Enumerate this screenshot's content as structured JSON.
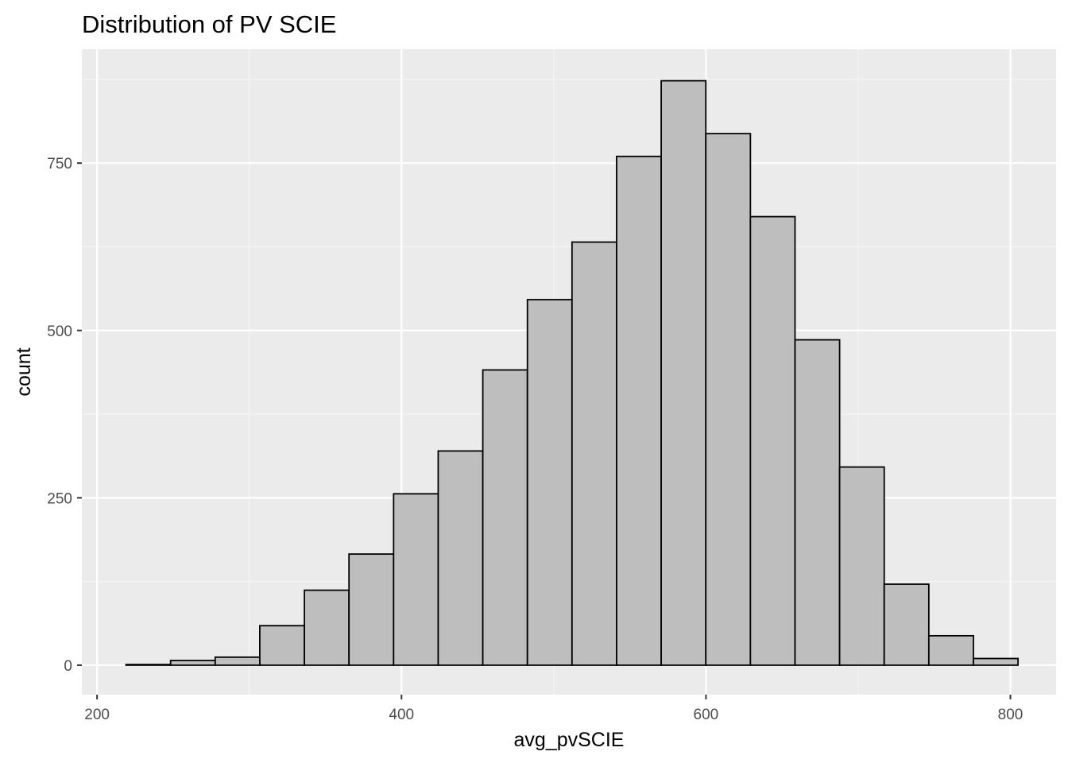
{
  "chart_data": {
    "type": "bar",
    "title": "Distribution of PV SCIE",
    "xlabel": "avg_pvSCIE",
    "ylabel": "count",
    "bin_width": 29.3,
    "bins": [
      {
        "x_start": 219.0,
        "x_end": 248.3,
        "count": 1
      },
      {
        "x_start": 248.3,
        "x_end": 277.6,
        "count": 7
      },
      {
        "x_start": 277.6,
        "x_end": 306.9,
        "count": 12
      },
      {
        "x_start": 306.9,
        "x_end": 336.2,
        "count": 59
      },
      {
        "x_start": 336.2,
        "x_end": 365.5,
        "count": 112
      },
      {
        "x_start": 365.5,
        "x_end": 394.8,
        "count": 166
      },
      {
        "x_start": 394.8,
        "x_end": 424.1,
        "count": 256
      },
      {
        "x_start": 424.1,
        "x_end": 453.4,
        "count": 320
      },
      {
        "x_start": 453.4,
        "x_end": 482.7,
        "count": 441
      },
      {
        "x_start": 482.7,
        "x_end": 512.0,
        "count": 546
      },
      {
        "x_start": 512.0,
        "x_end": 541.3,
        "count": 632
      },
      {
        "x_start": 541.3,
        "x_end": 570.6,
        "count": 760
      },
      {
        "x_start": 570.6,
        "x_end": 599.9,
        "count": 873
      },
      {
        "x_start": 599.9,
        "x_end": 629.2,
        "count": 794
      },
      {
        "x_start": 629.2,
        "x_end": 658.5,
        "count": 670
      },
      {
        "x_start": 658.5,
        "x_end": 687.8,
        "count": 486
      },
      {
        "x_start": 687.8,
        "x_end": 717.1,
        "count": 296
      },
      {
        "x_start": 717.1,
        "x_end": 746.4,
        "count": 121
      },
      {
        "x_start": 746.4,
        "x_end": 775.7,
        "count": 44
      },
      {
        "x_start": 775.7,
        "x_end": 805.0,
        "count": 10
      }
    ],
    "xlim": [
      190,
      830
    ],
    "ylim": [
      -44,
      920
    ],
    "x_ticks": [
      200,
      400,
      600,
      800
    ],
    "x_minor_ticks": [
      300,
      500,
      700
    ],
    "y_ticks": [
      0,
      250,
      500,
      750
    ],
    "y_minor_ticks": [
      125,
      375,
      625,
      875
    ],
    "grid": true,
    "legend": "none",
    "colors": {
      "panel_background": "#ebebeb",
      "grid_major": "#ffffff",
      "grid_minor": "#f5f5f5",
      "bar_fill": "#bebebe",
      "bar_outline": "#000000",
      "tick_label": "#4d4d4d",
      "tick_mark": "#333333"
    }
  }
}
